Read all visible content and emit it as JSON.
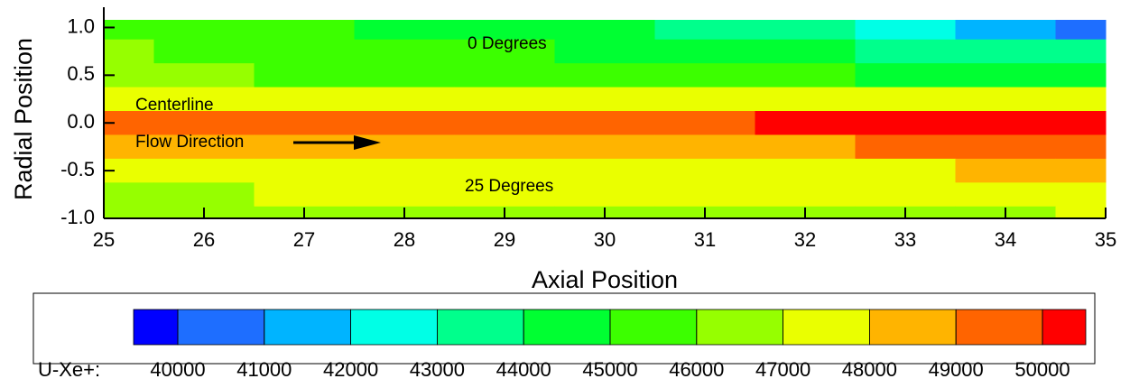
{
  "chart_data": {
    "type": "contour",
    "xlabel": "Axial Position",
    "ylabel": "Radial Position",
    "xlim": [
      25,
      35
    ],
    "ylim": [
      -1,
      1.08
    ],
    "xticks": [
      25,
      26,
      27,
      28,
      29,
      30,
      31,
      32,
      33,
      34,
      35
    ],
    "yticks": [
      {
        "value": -1,
        "label": "-1.0"
      },
      {
        "value": -0.5,
        "label": "-0.5"
      },
      {
        "value": 0,
        "label": "0.0"
      },
      {
        "value": 0.5,
        "label": "0.5"
      },
      {
        "value": 1,
        "label": "1.0"
      }
    ],
    "x": [
      25,
      26,
      27,
      28,
      29,
      30,
      31,
      32,
      33,
      34,
      35
    ],
    "y": [
      1,
      0.75,
      0.5,
      0.25,
      0,
      -0.25,
      -0.5,
      -0.75,
      -1
    ],
    "z": [
      [
        45500,
        45200,
        45000,
        44800,
        44500,
        44000,
        43500,
        43000,
        42000,
        41000,
        40500
      ],
      [
        46000,
        45800,
        45500,
        45200,
        45000,
        44800,
        44500,
        44200,
        43800,
        43500,
        43000
      ],
      [
        46200,
        46000,
        45800,
        45600,
        45500,
        45300,
        45100,
        45000,
        44800,
        44600,
        44500
      ],
      [
        47200,
        47100,
        47000,
        47000,
        47100,
        47200,
        47300,
        47500,
        47600,
        47700,
        47800
      ],
      [
        49000,
        49100,
        49200,
        49300,
        49400,
        49600,
        49800,
        50100,
        50200,
        50300,
        50400
      ],
      [
        48200,
        48300,
        48400,
        48500,
        48600,
        48700,
        48800,
        48900,
        49000,
        49100,
        49200
      ],
      [
        47300,
        47300,
        47400,
        47400,
        47500,
        47600,
        47700,
        47800,
        47900,
        48000,
        48100
      ],
      [
        46800,
        46900,
        47000,
        47000,
        47100,
        47200,
        47200,
        47300,
        47300,
        47400,
        47500
      ],
      [
        46200,
        46300,
        46400,
        46500,
        46600,
        46700,
        46800,
        46800,
        46900,
        46900,
        47000
      ]
    ],
    "annotations": [
      "0 Degrees",
      "Centerline",
      "Flow Direction",
      "25 Degrees"
    ],
    "colorbar": {
      "label": "U-Xe+:",
      "levels": [
        40000,
        41000,
        42000,
        43000,
        44000,
        45000,
        46000,
        47000,
        48000,
        49000,
        50000
      ],
      "colors": [
        "#0000ff",
        "#1e6eff",
        "#00b4ff",
        "#00ffe6",
        "#00ff8c",
        "#00ff32",
        "#3cff00",
        "#96ff00",
        "#eaff00",
        "#ffb400",
        "#ff6400",
        "#ff0000"
      ]
    }
  }
}
